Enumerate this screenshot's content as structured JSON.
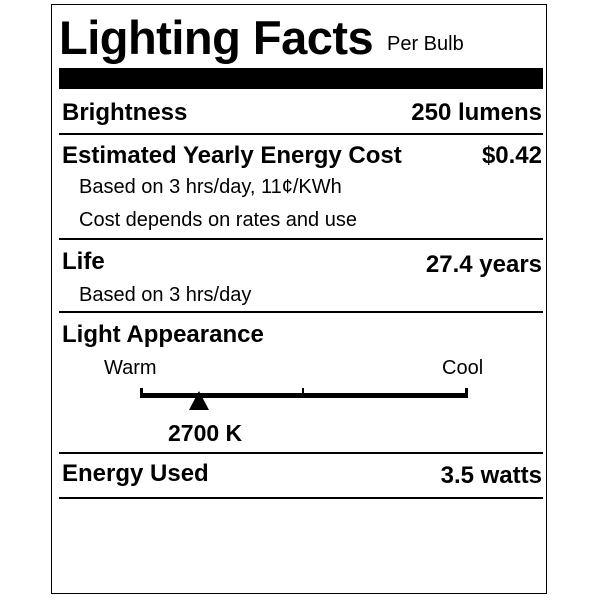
{
  "title": "Lighting Facts",
  "subtitle": "Per Bulb",
  "brightness": {
    "label": "Brightness",
    "value": "250 lumens"
  },
  "energy_cost": {
    "label": "Estimated Yearly Energy Cost",
    "value": "$0.42",
    "notes": [
      "Based on 3 hrs/day, 11¢/KWh",
      "Cost depends on rates and use"
    ]
  },
  "life": {
    "label": "Life",
    "value": "27.4 years",
    "note": "Based on 3 hrs/day"
  },
  "light_appearance": {
    "label": "Light Appearance",
    "warm_label": "Warm",
    "cool_label": "Cool",
    "value": "2700 K",
    "marker_fraction": 0.18
  },
  "energy_used": {
    "label": "Energy Used",
    "value": "3.5 watts"
  }
}
